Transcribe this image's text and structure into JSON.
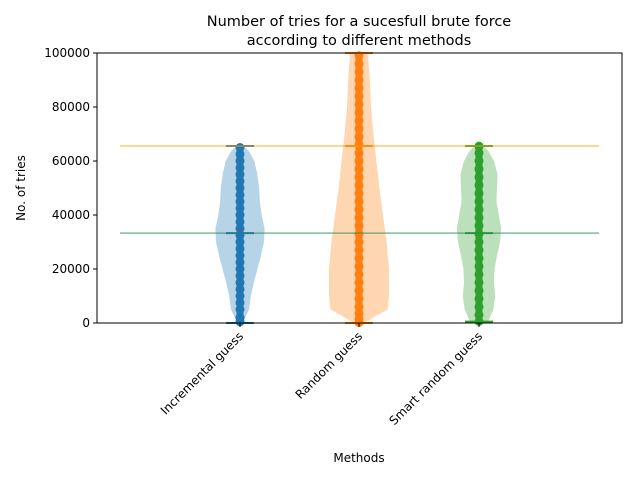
{
  "chart_data": {
    "type": "violin",
    "title_lines": [
      "Number of tries for a sucesfull brute force",
      "according to different methods"
    ],
    "xlabel": "Methods",
    "ylabel": "No. of tries",
    "ylim": [
      0,
      100000
    ],
    "yticks": [
      0,
      20000,
      40000,
      60000,
      80000,
      100000
    ],
    "grid": false,
    "categories": [
      "Incremental guess",
      "Random guess",
      "Smart random guess"
    ],
    "colors": [
      "#1f77b4",
      "#ff7f0e",
      "#2ca02c"
    ],
    "series": [
      {
        "min": 0,
        "max": 65536,
        "median": 33300,
        "density_profile": [
          [
            0,
            0.09
          ],
          [
            5000,
            0.3
          ],
          [
            10000,
            0.36
          ],
          [
            15000,
            0.46
          ],
          [
            20000,
            0.58
          ],
          [
            25000,
            0.7
          ],
          [
            30000,
            0.8
          ],
          [
            35000,
            0.82
          ],
          [
            40000,
            0.72
          ],
          [
            45000,
            0.66
          ],
          [
            50000,
            0.64
          ],
          [
            55000,
            0.58
          ],
          [
            60000,
            0.48
          ],
          [
            64000,
            0.28
          ],
          [
            65536,
            0.1
          ]
        ],
        "points": [
          500,
          2000,
          5000,
          7500,
          10000,
          12500,
          15000,
          17500,
          20000,
          22500,
          25000,
          27500,
          30000,
          32500,
          35000,
          37500,
          40000,
          42500,
          45000,
          47500,
          50000,
          52500,
          55000,
          57500,
          60000,
          62500,
          65000
        ]
      },
      {
        "min": 0,
        "max": 100000,
        "median": 65536,
        "density_profile": [
          [
            0,
            0.15
          ],
          [
            5000,
            0.95
          ],
          [
            10000,
            1.0
          ],
          [
            20000,
            1.0
          ],
          [
            30000,
            0.92
          ],
          [
            40000,
            0.8
          ],
          [
            50000,
            0.68
          ],
          [
            60000,
            0.58
          ],
          [
            70000,
            0.48
          ],
          [
            80000,
            0.4
          ],
          [
            90000,
            0.36
          ],
          [
            96000,
            0.32
          ],
          [
            100000,
            0.3
          ]
        ],
        "points": [
          200,
          1500,
          3500,
          6000,
          9000,
          12000,
          15000,
          18000,
          21000,
          24000,
          27000,
          30000,
          33000,
          36000,
          39000,
          42000,
          45000,
          48000,
          51000,
          54000,
          57000,
          60000,
          63000,
          66000,
          69000,
          72000,
          75000,
          78000,
          81000,
          84000,
          87000,
          90000,
          93000,
          96000,
          99000
        ]
      },
      {
        "min": 500,
        "max": 65536,
        "median": 33300,
        "density_profile": [
          [
            500,
            0.3
          ],
          [
            5000,
            0.48
          ],
          [
            10000,
            0.54
          ],
          [
            15000,
            0.5
          ],
          [
            20000,
            0.52
          ],
          [
            25000,
            0.6
          ],
          [
            30000,
            0.7
          ],
          [
            35000,
            0.74
          ],
          [
            40000,
            0.66
          ],
          [
            45000,
            0.58
          ],
          [
            50000,
            0.6
          ],
          [
            55000,
            0.62
          ],
          [
            60000,
            0.5
          ],
          [
            64000,
            0.3
          ],
          [
            65536,
            0.12
          ]
        ],
        "points": [
          600,
          3000,
          6000,
          9000,
          12000,
          15000,
          18000,
          21000,
          24000,
          27000,
          30000,
          33000,
          36000,
          39000,
          42000,
          45000,
          48000,
          51000,
          54000,
          57000,
          60000,
          63000,
          65500
        ]
      }
    ],
    "reference_lines": [
      {
        "y": 65536,
        "color": "#ffa500"
      },
      {
        "y": 33300,
        "color": "#2e8b57"
      }
    ]
  }
}
